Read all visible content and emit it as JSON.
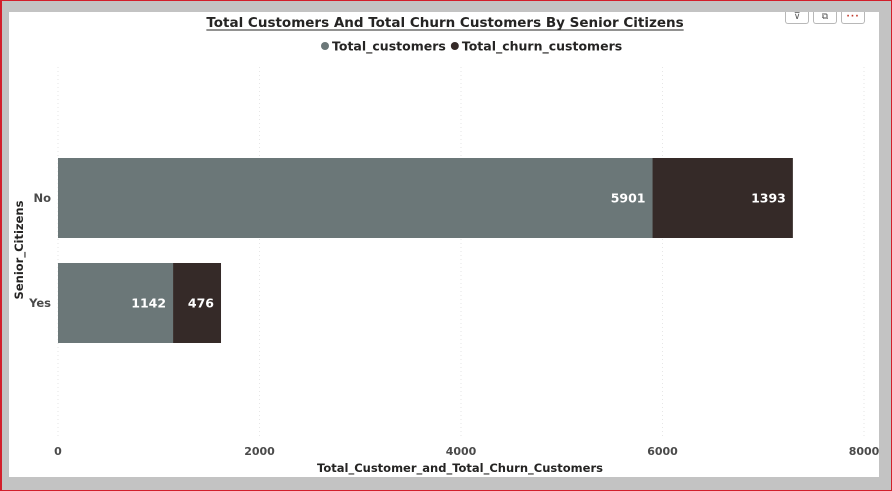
{
  "chart_data": {
    "type": "bar",
    "orientation": "horizontal",
    "stacked": true,
    "title": "Total Customers And Total Churn Customers By Senior Citizens",
    "xlabel": "Total_Customer_and_Total_Churn_Customers",
    "ylabel": "Senior_Citizens",
    "categories": [
      "No",
      "Yes"
    ],
    "series": [
      {
        "name": "Total_customers",
        "values": [
          5901,
          1142
        ],
        "color": "#6b7778"
      },
      {
        "name": "Total_churn_customers",
        "values": [
          1393,
          476
        ],
        "color": "#352a28"
      }
    ],
    "xlim": [
      0,
      8000
    ],
    "xticks": [
      "0",
      "2000",
      "4000",
      "6000",
      "8000"
    ],
    "grid": true,
    "legend": "top-center"
  },
  "header_icons": [
    {
      "name": "filter-icon",
      "glyph": "⊽"
    },
    {
      "name": "focus-mode-icon",
      "glyph": "⧉"
    },
    {
      "name": "more-options-icon",
      "glyph": "···"
    }
  ]
}
